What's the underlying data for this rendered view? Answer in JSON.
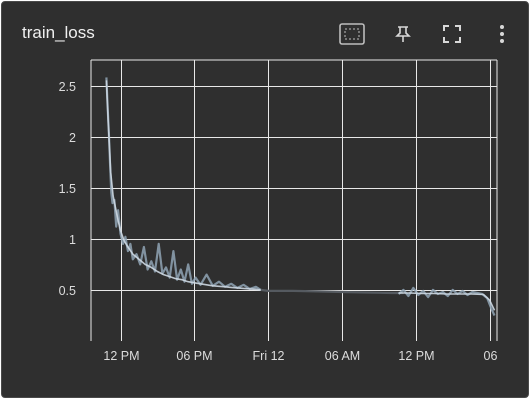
{
  "card": {
    "title": "train_loss",
    "toolbar": [
      {
        "name": "fit-domain-icon",
        "label": "Fit domain to data"
      },
      {
        "name": "pin-icon",
        "label": "Pin card"
      },
      {
        "name": "fullscreen-icon",
        "label": "Toggle fullscreen"
      },
      {
        "name": "more-vert-icon",
        "label": "More options"
      }
    ]
  },
  "colors": {
    "background": "#2f2f2f",
    "grid": "#e8e8e8",
    "series_raw": "#8fa3b4",
    "series_smooth": "#cdd8e2",
    "series_dark": "#555a60"
  },
  "chart_data": {
    "type": "line",
    "xaxis": "relative time",
    "x_tick_labels": [
      "12 PM",
      "06 PM",
      "Fri 12",
      "06 AM",
      "12 PM",
      "06"
    ],
    "x_tick_hours": [
      12,
      18,
      24,
      30,
      36,
      42
    ],
    "y_tick_labels": [
      "0.5",
      "1",
      "1.5",
      "2",
      "2.5"
    ],
    "y_tick_values": [
      0.5,
      1,
      1.5,
      2,
      2.5
    ],
    "ylim": [
      0.0,
      2.75
    ],
    "xlim_hours": [
      9.6,
      42.6
    ],
    "grid": true,
    "series": [
      {
        "style": "raw",
        "x_hours": [
          10.85,
          10.95,
          11.05,
          11.15,
          11.25,
          11.35,
          11.5,
          11.65,
          11.8,
          12.0,
          12.2,
          12.4,
          12.6,
          12.8,
          13.0,
          13.3,
          13.6,
          13.9,
          14.2,
          14.5,
          14.8,
          15.1,
          15.4,
          15.7,
          16.0,
          16.3,
          16.6,
          16.9,
          17.2,
          17.5,
          17.8,
          18.1,
          18.5,
          19.0,
          19.5,
          20.0,
          20.5,
          21.0,
          21.5,
          22.0,
          22.5,
          23.0,
          23.4
        ],
        "y": [
          2.58,
          2.3,
          2.05,
          1.72,
          1.45,
          1.35,
          1.38,
          1.12,
          1.28,
          1.05,
          0.95,
          1.02,
          0.88,
          0.95,
          0.8,
          0.85,
          0.75,
          0.92,
          0.7,
          0.78,
          0.68,
          0.95,
          0.66,
          0.72,
          0.62,
          0.88,
          0.6,
          0.7,
          0.58,
          0.75,
          0.56,
          0.62,
          0.55,
          0.65,
          0.54,
          0.58,
          0.53,
          0.56,
          0.52,
          0.55,
          0.51,
          0.53,
          0.5
        ]
      },
      {
        "style": "smooth",
        "x_hours": [
          10.85,
          11.0,
          11.2,
          11.4,
          11.6,
          11.8,
          12.0,
          12.3,
          12.6,
          13.0,
          13.5,
          14.0,
          14.5,
          15.0,
          15.5,
          16.0,
          16.5,
          17.0,
          17.5,
          18.0,
          18.5,
          19.0,
          19.5,
          20.0,
          20.5,
          21.0,
          21.5,
          22.0,
          22.5,
          23.0,
          23.4
        ],
        "y": [
          2.55,
          2.15,
          1.65,
          1.42,
          1.3,
          1.18,
          1.08,
          0.98,
          0.92,
          0.85,
          0.8,
          0.75,
          0.72,
          0.68,
          0.65,
          0.63,
          0.61,
          0.6,
          0.58,
          0.57,
          0.56,
          0.55,
          0.54,
          0.535,
          0.53,
          0.525,
          0.52,
          0.515,
          0.51,
          0.505,
          0.5
        ]
      },
      {
        "style": "gap",
        "x_hours": [
          23.4,
          24.0,
          26.0,
          28.0,
          30.0,
          32.0,
          34.0,
          35.0
        ],
        "y": [
          0.5,
          0.49,
          0.49,
          0.485,
          0.48,
          0.475,
          0.47,
          0.47
        ]
      },
      {
        "style": "raw",
        "x_hours": [
          34.6,
          35.0,
          35.4,
          35.8,
          36.2,
          36.6,
          37.0,
          37.4,
          37.8,
          38.2,
          38.6,
          39.0,
          39.4,
          39.8,
          40.2,
          40.6,
          41.0,
          41.4,
          41.8,
          42.0,
          42.2,
          42.4
        ],
        "y": [
          0.46,
          0.5,
          0.44,
          0.52,
          0.45,
          0.49,
          0.43,
          0.5,
          0.46,
          0.48,
          0.44,
          0.5,
          0.46,
          0.49,
          0.45,
          0.48,
          0.47,
          0.46,
          0.42,
          0.36,
          0.3,
          0.25
        ]
      },
      {
        "style": "smooth",
        "x_hours": [
          34.6,
          35.5,
          36.5,
          37.5,
          38.5,
          39.5,
          40.5,
          41.5,
          42.0,
          42.4
        ],
        "y": [
          0.47,
          0.47,
          0.465,
          0.465,
          0.46,
          0.46,
          0.46,
          0.455,
          0.4,
          0.3
        ]
      }
    ]
  }
}
